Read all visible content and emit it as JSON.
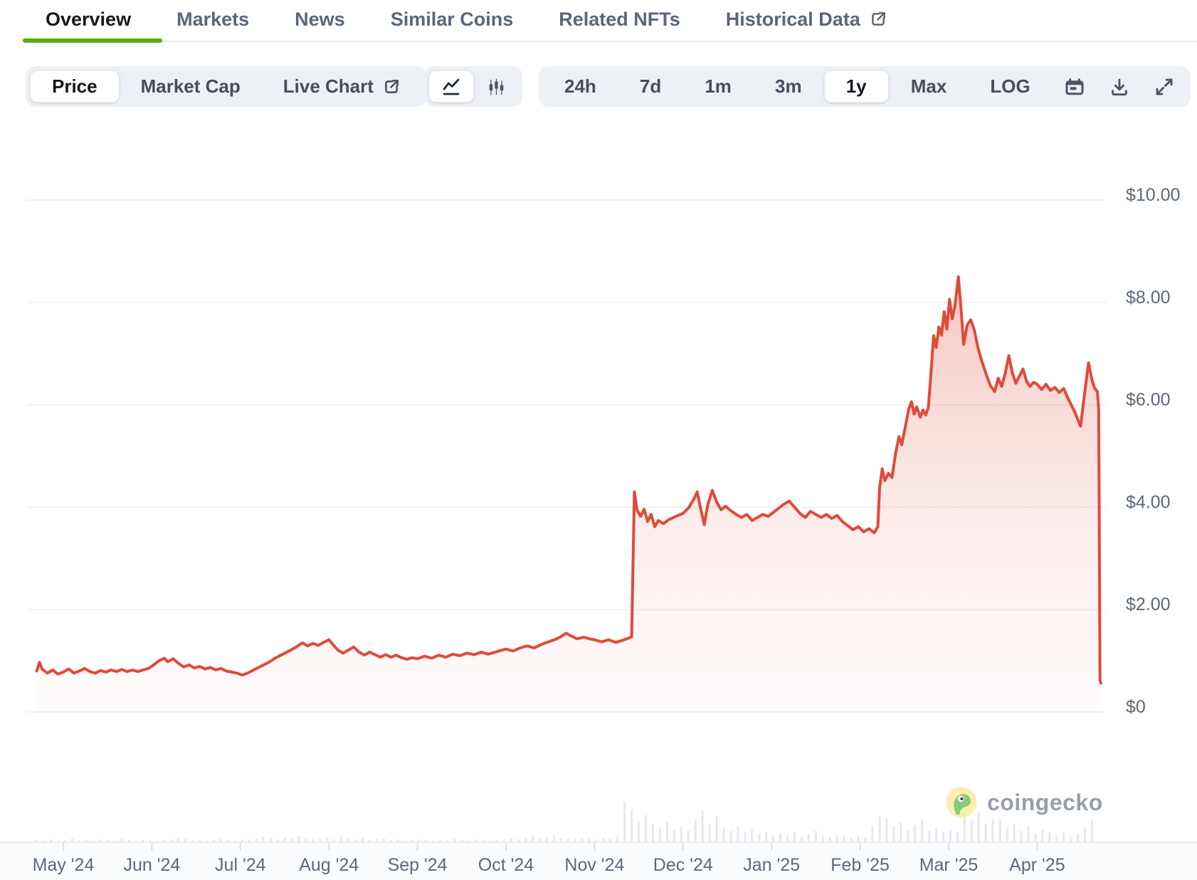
{
  "tabs": {
    "items": [
      {
        "label": "Overview",
        "active": true
      },
      {
        "label": "Markets",
        "active": false
      },
      {
        "label": "News",
        "active": false
      },
      {
        "label": "Similar Coins",
        "active": false
      },
      {
        "label": "Related NFTs",
        "active": false
      },
      {
        "label": "Historical Data",
        "active": false,
        "external": true
      }
    ],
    "accent_green": "#56b00c"
  },
  "toolbar": {
    "metric_tabs": [
      {
        "label": "Price",
        "active": true
      },
      {
        "label": "Market Cap",
        "active": false
      },
      {
        "label": "Live Chart",
        "active": false,
        "external": true
      }
    ],
    "chart_type_buttons": [
      {
        "name": "line-chart",
        "active": true
      },
      {
        "name": "candlestick-chart",
        "active": false
      }
    ],
    "range_buttons": [
      {
        "label": "24h",
        "active": false
      },
      {
        "label": "7d",
        "active": false
      },
      {
        "label": "1m",
        "active": false
      },
      {
        "label": "3m",
        "active": false
      },
      {
        "label": "1y",
        "active": true
      },
      {
        "label": "Max",
        "active": false
      },
      {
        "label": "LOG",
        "active": false
      }
    ],
    "icon_buttons": [
      "calendar",
      "download",
      "expand"
    ]
  },
  "watermark": {
    "text": "coingecko"
  },
  "chart_data": {
    "type": "line",
    "title": "Token price, 1 year",
    "legend": "none",
    "grid": "horizontal",
    "y_axis": {
      "side": "right",
      "range": [
        0,
        10
      ],
      "ticks": [
        {
          "label": "$10.00",
          "value": 10
        },
        {
          "label": "$8.00",
          "value": 8
        },
        {
          "label": "$6.00",
          "value": 6
        },
        {
          "label": "$4.00",
          "value": 4
        },
        {
          "label": "$2.00",
          "value": 2
        },
        {
          "label": "$0",
          "value": 0
        }
      ]
    },
    "x_axis": {
      "ticks": [
        "May '24",
        "Jun '24",
        "Jul '24",
        "Aug '24",
        "Sep '24",
        "Oct '24",
        "Nov '24",
        "Dec '24",
        "Jan '25",
        "Feb '25",
        "Mar '25",
        "Apr '25"
      ]
    },
    "colors": {
      "line": "#e04a3a",
      "fill_top": "rgba(224,74,58,0.30)",
      "fill_mid": "rgba(224,74,58,0.10)",
      "fill_bottom": "rgba(224,74,58,0.015)",
      "grid": "#f0f2f4",
      "axis_line": "#eaedf1",
      "tick": "#dbe0e5",
      "axis_text": "#5c6878",
      "volume": "#e5e9ee"
    },
    "points": [
      [
        -0.3,
        0.8
      ],
      [
        -0.27,
        0.97
      ],
      [
        -0.24,
        0.84
      ],
      [
        -0.18,
        0.76
      ],
      [
        -0.12,
        0.82
      ],
      [
        -0.06,
        0.74
      ],
      [
        0.0,
        0.78
      ],
      [
        0.06,
        0.84
      ],
      [
        0.12,
        0.76
      ],
      [
        0.18,
        0.8
      ],
      [
        0.24,
        0.85
      ],
      [
        0.3,
        0.79
      ],
      [
        0.36,
        0.76
      ],
      [
        0.42,
        0.81
      ],
      [
        0.48,
        0.78
      ],
      [
        0.54,
        0.82
      ],
      [
        0.6,
        0.79
      ],
      [
        0.66,
        0.83
      ],
      [
        0.72,
        0.79
      ],
      [
        0.78,
        0.82
      ],
      [
        0.84,
        0.79
      ],
      [
        0.9,
        0.82
      ],
      [
        0.96,
        0.85
      ],
      [
        1.02,
        0.92
      ],
      [
        1.08,
        1.0
      ],
      [
        1.14,
        1.05
      ],
      [
        1.18,
        0.98
      ],
      [
        1.24,
        1.04
      ],
      [
        1.3,
        0.95
      ],
      [
        1.36,
        0.88
      ],
      [
        1.42,
        0.92
      ],
      [
        1.48,
        0.86
      ],
      [
        1.54,
        0.89
      ],
      [
        1.6,
        0.84
      ],
      [
        1.66,
        0.87
      ],
      [
        1.72,
        0.82
      ],
      [
        1.78,
        0.85
      ],
      [
        1.84,
        0.8
      ],
      [
        1.9,
        0.78
      ],
      [
        1.96,
        0.76
      ],
      [
        2.02,
        0.72
      ],
      [
        2.08,
        0.76
      ],
      [
        2.16,
        0.83
      ],
      [
        2.24,
        0.9
      ],
      [
        2.32,
        0.97
      ],
      [
        2.4,
        1.06
      ],
      [
        2.48,
        1.13
      ],
      [
        2.56,
        1.2
      ],
      [
        2.64,
        1.28
      ],
      [
        2.7,
        1.35
      ],
      [
        2.76,
        1.29
      ],
      [
        2.82,
        1.34
      ],
      [
        2.88,
        1.3
      ],
      [
        2.94,
        1.36
      ],
      [
        3.0,
        1.41
      ],
      [
        3.05,
        1.31
      ],
      [
        3.1,
        1.21
      ],
      [
        3.16,
        1.15
      ],
      [
        3.22,
        1.21
      ],
      [
        3.28,
        1.27
      ],
      [
        3.34,
        1.17
      ],
      [
        3.4,
        1.11
      ],
      [
        3.46,
        1.17
      ],
      [
        3.52,
        1.12
      ],
      [
        3.58,
        1.07
      ],
      [
        3.64,
        1.12
      ],
      [
        3.7,
        1.07
      ],
      [
        3.76,
        1.11
      ],
      [
        3.82,
        1.06
      ],
      [
        3.88,
        1.03
      ],
      [
        3.94,
        1.06
      ],
      [
        4.0,
        1.04
      ],
      [
        4.08,
        1.09
      ],
      [
        4.16,
        1.05
      ],
      [
        4.24,
        1.11
      ],
      [
        4.32,
        1.07
      ],
      [
        4.4,
        1.13
      ],
      [
        4.48,
        1.1
      ],
      [
        4.56,
        1.15
      ],
      [
        4.64,
        1.12
      ],
      [
        4.72,
        1.17
      ],
      [
        4.8,
        1.13
      ],
      [
        4.88,
        1.17
      ],
      [
        4.94,
        1.2
      ],
      [
        5.0,
        1.23
      ],
      [
        5.08,
        1.19
      ],
      [
        5.16,
        1.25
      ],
      [
        5.24,
        1.29
      ],
      [
        5.32,
        1.25
      ],
      [
        5.4,
        1.32
      ],
      [
        5.48,
        1.37
      ],
      [
        5.56,
        1.42
      ],
      [
        5.62,
        1.47
      ],
      [
        5.68,
        1.54
      ],
      [
        5.74,
        1.48
      ],
      [
        5.8,
        1.43
      ],
      [
        5.88,
        1.46
      ],
      [
        5.94,
        1.43
      ],
      [
        6.0,
        1.41
      ],
      [
        6.08,
        1.37
      ],
      [
        6.16,
        1.41
      ],
      [
        6.24,
        1.36
      ],
      [
        6.32,
        1.4
      ],
      [
        6.38,
        1.44
      ],
      [
        6.42,
        1.47
      ],
      [
        6.45,
        4.3
      ],
      [
        6.48,
        3.95
      ],
      [
        6.52,
        3.82
      ],
      [
        6.56,
        3.96
      ],
      [
        6.6,
        3.72
      ],
      [
        6.64,
        3.86
      ],
      [
        6.68,
        3.62
      ],
      [
        6.72,
        3.74
      ],
      [
        6.78,
        3.68
      ],
      [
        6.84,
        3.76
      ],
      [
        6.92,
        3.82
      ],
      [
        7.0,
        3.88
      ],
      [
        7.06,
        3.98
      ],
      [
        7.12,
        4.15
      ],
      [
        7.16,
        4.3
      ],
      [
        7.2,
        3.96
      ],
      [
        7.24,
        3.66
      ],
      [
        7.28,
        4.05
      ],
      [
        7.33,
        4.33
      ],
      [
        7.38,
        4.1
      ],
      [
        7.43,
        3.95
      ],
      [
        7.48,
        4.02
      ],
      [
        7.54,
        3.93
      ],
      [
        7.6,
        3.86
      ],
      [
        7.66,
        3.8
      ],
      [
        7.72,
        3.86
      ],
      [
        7.78,
        3.74
      ],
      [
        7.84,
        3.8
      ],
      [
        7.9,
        3.86
      ],
      [
        7.96,
        3.82
      ],
      [
        8.02,
        3.9
      ],
      [
        8.08,
        3.98
      ],
      [
        8.14,
        4.06
      ],
      [
        8.2,
        4.12
      ],
      [
        8.26,
        4.0
      ],
      [
        8.32,
        3.88
      ],
      [
        8.38,
        3.8
      ],
      [
        8.44,
        3.92
      ],
      [
        8.5,
        3.86
      ],
      [
        8.56,
        3.8
      ],
      [
        8.62,
        3.86
      ],
      [
        8.68,
        3.78
      ],
      [
        8.74,
        3.84
      ],
      [
        8.8,
        3.72
      ],
      [
        8.86,
        3.64
      ],
      [
        8.92,
        3.56
      ],
      [
        8.98,
        3.62
      ],
      [
        9.04,
        3.52
      ],
      [
        9.1,
        3.58
      ],
      [
        9.16,
        3.5
      ],
      [
        9.2,
        3.62
      ],
      [
        9.22,
        4.38
      ],
      [
        9.25,
        4.75
      ],
      [
        9.28,
        4.52
      ],
      [
        9.32,
        4.66
      ],
      [
        9.36,
        4.58
      ],
      [
        9.4,
        5.05
      ],
      [
        9.44,
        5.38
      ],
      [
        9.47,
        5.22
      ],
      [
        9.51,
        5.56
      ],
      [
        9.55,
        5.92
      ],
      [
        9.58,
        6.06
      ],
      [
        9.61,
        5.82
      ],
      [
        9.64,
        5.96
      ],
      [
        9.68,
        5.76
      ],
      [
        9.71,
        5.9
      ],
      [
        9.74,
        5.8
      ],
      [
        9.77,
        5.94
      ],
      [
        9.8,
        6.6
      ],
      [
        9.83,
        7.35
      ],
      [
        9.86,
        7.12
      ],
      [
        9.89,
        7.52
      ],
      [
        9.92,
        7.36
      ],
      [
        9.95,
        7.82
      ],
      [
        9.98,
        7.48
      ],
      [
        10.01,
        8.06
      ],
      [
        10.04,
        7.68
      ],
      [
        10.07,
        7.92
      ],
      [
        10.11,
        8.5
      ],
      [
        10.14,
        7.88
      ],
      [
        10.17,
        7.18
      ],
      [
        10.21,
        7.56
      ],
      [
        10.25,
        7.66
      ],
      [
        10.29,
        7.46
      ],
      [
        10.33,
        7.12
      ],
      [
        10.37,
        6.88
      ],
      [
        10.42,
        6.62
      ],
      [
        10.47,
        6.38
      ],
      [
        10.52,
        6.26
      ],
      [
        10.56,
        6.52
      ],
      [
        10.6,
        6.36
      ],
      [
        10.64,
        6.62
      ],
      [
        10.68,
        6.96
      ],
      [
        10.72,
        6.62
      ],
      [
        10.76,
        6.42
      ],
      [
        10.8,
        6.56
      ],
      [
        10.84,
        6.7
      ],
      [
        10.88,
        6.46
      ],
      [
        10.92,
        6.36
      ],
      [
        10.96,
        6.44
      ],
      [
        11.0,
        6.4
      ],
      [
        11.05,
        6.3
      ],
      [
        11.1,
        6.4
      ],
      [
        11.15,
        6.28
      ],
      [
        11.2,
        6.34
      ],
      [
        11.25,
        6.24
      ],
      [
        11.3,
        6.32
      ],
      [
        11.35,
        6.12
      ],
      [
        11.42,
        5.88
      ],
      [
        11.49,
        5.58
      ],
      [
        11.54,
        6.28
      ],
      [
        11.58,
        6.82
      ],
      [
        11.62,
        6.48
      ],
      [
        11.65,
        6.32
      ],
      [
        11.68,
        6.26
      ],
      [
        11.695,
        5.9
      ],
      [
        11.71,
        0.62
      ],
      [
        11.72,
        0.56
      ]
    ],
    "volume": {
      "start": -0.3,
      "step": 0.08,
      "heights": [
        3,
        2,
        4,
        2,
        3,
        5,
        2,
        3,
        2,
        4,
        3,
        2,
        5,
        3,
        2,
        4,
        3,
        2,
        3,
        4,
        6,
        5,
        3,
        4,
        2,
        3,
        5,
        3,
        2,
        4,
        3,
        5,
        8,
        6,
        4,
        7,
        5,
        9,
        6,
        4,
        5,
        7,
        4,
        8,
        5,
        4,
        6,
        3,
        4,
        5,
        3,
        4,
        2,
        3,
        4,
        3,
        2,
        4,
        3,
        5,
        3,
        2,
        4,
        3,
        2,
        3,
        4,
        5,
        4,
        6,
        8,
        5,
        7,
        10,
        6,
        5,
        4,
        6,
        5,
        4,
        6,
        5,
        8,
        58,
        46,
        30,
        38,
        26,
        20,
        28,
        18,
        22,
        16,
        32,
        44,
        26,
        36,
        20,
        16,
        22,
        14,
        18,
        12,
        15,
        10,
        12,
        10,
        14,
        8,
        12,
        16,
        9,
        7,
        11,
        8,
        6,
        9,
        7,
        22,
        36,
        34,
        22,
        28,
        18,
        24,
        30,
        16,
        20,
        14,
        18,
        15,
        40,
        30,
        44,
        26,
        32,
        32,
        20,
        26,
        16,
        22,
        12,
        18,
        14,
        10,
        14,
        8,
        12,
        20,
        32
      ]
    }
  }
}
